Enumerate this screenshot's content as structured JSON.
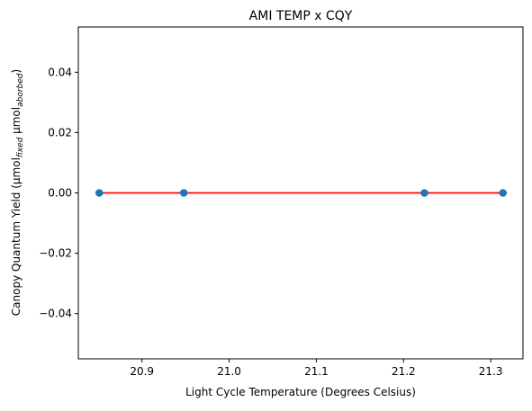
{
  "chart_data": {
    "type": "scatter",
    "title": "AMI TEMP x CQY",
    "xlabel": "Light Cycle Temperature (Degrees Celsius)",
    "ylabel": {
      "main": "Canopy Quantum Yield (µmol",
      "sub1": "fixed",
      "mid": " µmol",
      "sub2": "aborbed",
      "end": ")"
    },
    "xlim": [
      20.827,
      21.337
    ],
    "ylim": [
      -0.055,
      0.055
    ],
    "xticks": [
      20.9,
      21.0,
      21.1,
      21.2,
      21.3
    ],
    "xtick_labels": [
      "20.9",
      "21.0",
      "21.1",
      "21.2",
      "21.3"
    ],
    "yticks": [
      -0.04,
      -0.02,
      0.0,
      0.02,
      0.04
    ],
    "ytick_labels": [
      "−0.04",
      "−0.02",
      "0.00",
      "0.02",
      "0.04"
    ],
    "grid": false,
    "series": [
      {
        "type": "scatter",
        "x": [
          20.851,
          20.948,
          21.224,
          21.314
        ],
        "y": [
          0,
          0,
          0,
          0
        ],
        "color": "#1f77b4"
      },
      {
        "type": "line",
        "x": [
          20.851,
          21.314
        ],
        "y": [
          0,
          0
        ],
        "color": "#ff0000"
      }
    ]
  }
}
